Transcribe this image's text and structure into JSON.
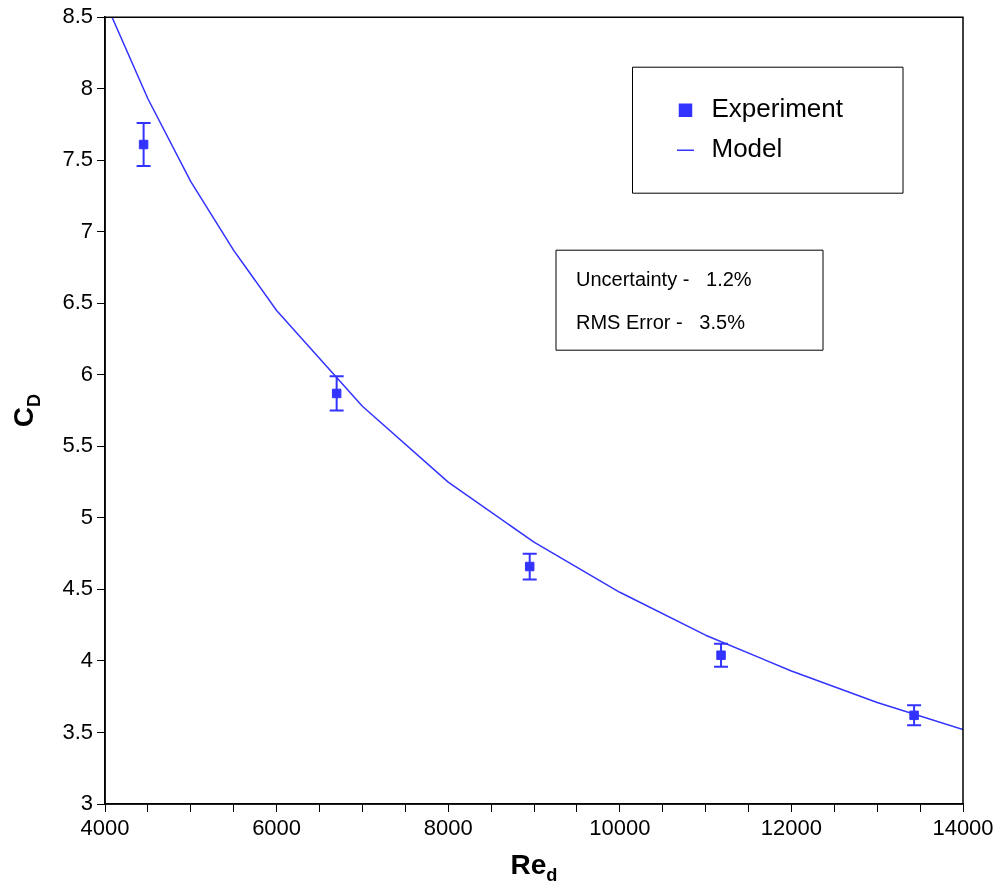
{
  "chart_data": {
    "type": "scatter",
    "xlabel": "Re$_{d}$",
    "ylabel": "C$_{D}$",
    "xlim": [
      4000,
      14000
    ],
    "ylim": [
      3,
      8.5
    ],
    "xticks": [
      4000,
      {
        "value": 4500,
        "label": null
      },
      {
        "value": 5000,
        "label": null
      },
      {
        "value": 5500,
        "label": null
      },
      6000,
      {
        "value": 6500,
        "label": null
      },
      {
        "value": 7000,
        "label": null
      },
      {
        "value": 7500,
        "label": null
      },
      8000,
      {
        "value": 8500,
        "label": null
      },
      {
        "value": 9000,
        "label": null
      },
      {
        "value": 9500,
        "label": null
      },
      10000,
      {
        "value": 10500,
        "label": null
      },
      {
        "value": 11000,
        "label": null
      },
      {
        "value": 11500,
        "label": null
      },
      12000,
      {
        "value": 12500,
        "label": null
      },
      {
        "value": 13000,
        "label": null
      },
      {
        "value": 13500,
        "label": null
      },
      14000
    ],
    "yticks": [
      3,
      3.5,
      4,
      4.5,
      5,
      5.5,
      6,
      6.5,
      7,
      7.5,
      8,
      8.5
    ],
    "grid": false,
    "legend": "top right",
    "annotations": [
      "Uncertainty -   1.2%",
      "RMS Error -   3.5%"
    ],
    "series": [
      {
        "name": "Experiment",
        "marker": "square",
        "color": "#3333ff",
        "x": [
          4450,
          6700,
          8950,
          11180,
          13430
        ],
        "values": [
          7.61,
          5.87,
          4.66,
          4.04,
          3.62
        ],
        "errors": [
          0.15,
          0.12,
          0.09,
          0.08,
          0.07
        ]
      },
      {
        "name": "Model",
        "type": "line",
        "marker": "none",
        "color": "#3333ff",
        "x": [
          4082,
          4500,
          5000,
          5500,
          6000,
          7000,
          8000,
          9000,
          10000,
          11000,
          12000,
          13000,
          14000
        ],
        "values": [
          8.5,
          7.93,
          7.35,
          6.87,
          6.45,
          5.78,
          5.25,
          4.83,
          4.48,
          4.18,
          3.93,
          3.71,
          3.52
        ]
      }
    ]
  }
}
